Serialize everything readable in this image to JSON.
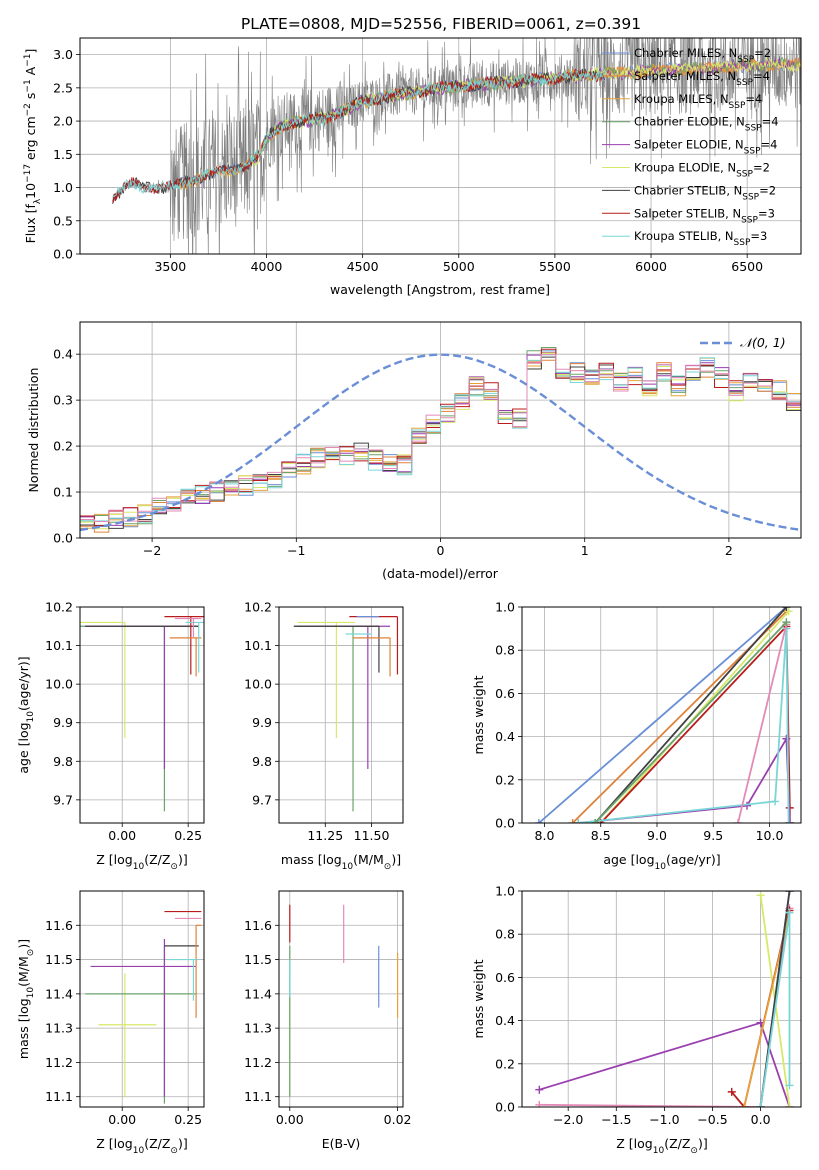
{
  "title": "PLATE=0808, MJD=52556, FIBERID=0061, z=0.391",
  "colors": {
    "Chabrier MILES": "#6a8fd6",
    "Salpeter MILES": "#e0813a",
    "Kroupa MILES": "#e6a33a",
    "Chabrier ELODIE": "#6aa46a",
    "Salpeter ELODIE": "#9a3fb0",
    "Kroupa ELODIE": "#d8e86a",
    "Chabrier STELIB": "#404040",
    "Salpeter STELIB": "#b81c1c",
    "Kroupa STELIB": "#7ad6d6",
    "extra_pink": "#e48ab8",
    "data": "#808080",
    "gauss": "#6a8fd6",
    "grid": "#b0b0b0"
  },
  "chart_data": [
    {
      "type": "line",
      "title": "PLATE=0808, MJD=52556, FIBERID=0061, z=0.391",
      "xlabel": "wavelength [Angstrom, rest frame]",
      "ylabel": "Flux [f",
      "ylabel_sub": "λ",
      "ylabel_rest": "10",
      "ylabel_exp1": "−17",
      "ylabel_unit": " erg cm",
      "ylabel_exp2": "−2",
      "ylabel_unit2": " s",
      "ylabel_exp3": "−1",
      "ylabel_unit3": " A",
      "ylabel_exp4": "−1",
      "ylabel_end": "]",
      "xlim": [
        3030,
        6780
      ],
      "ylim": [
        0,
        3.25
      ],
      "xticks": [
        3500,
        4000,
        4500,
        5000,
        5500,
        6000,
        6500
      ],
      "yticks": [
        0.0,
        0.5,
        1.0,
        1.5,
        2.0,
        2.5,
        3.0
      ],
      "legend": "upper-right",
      "legend_entries": [
        {
          "name": "Chabrier MILES, N",
          "sub": "SSP",
          "n": "=2"
        },
        {
          "name": "Salpeter MILES, N",
          "sub": "SSP",
          "n": "=4"
        },
        {
          "name": "Kroupa MILES, N",
          "sub": "SSP",
          "n": "=4"
        },
        {
          "name": "Chabrier ELODIE, N",
          "sub": "SSP",
          "n": "=4"
        },
        {
          "name": "Salpeter ELODIE, N",
          "sub": "SSP",
          "n": "=4"
        },
        {
          "name": "Kroupa ELODIE, N",
          "sub": "SSP",
          "n": "=2"
        },
        {
          "name": "Chabrier STELIB, N",
          "sub": "SSP",
          "n": "=2"
        },
        {
          "name": "Salpeter STELIB, N",
          "sub": "SSP",
          "n": "=3"
        },
        {
          "name": "Kroupa STELIB, N",
          "sub": "SSP",
          "n": "=3"
        }
      ],
      "continuum": [
        [
          3200,
          0.85
        ],
        [
          3260,
          1.0
        ],
        [
          3300,
          1.05
        ],
        [
          3380,
          1.02
        ],
        [
          3500,
          1.0
        ],
        [
          3600,
          1.1
        ],
        [
          3700,
          1.2
        ],
        [
          3800,
          1.25
        ],
        [
          3900,
          1.35
        ],
        [
          3970,
          1.5
        ],
        [
          4000,
          1.75
        ],
        [
          4100,
          1.95
        ],
        [
          4200,
          2.0
        ],
        [
          4300,
          2.05
        ],
        [
          4400,
          2.15
        ],
        [
          4500,
          2.3
        ],
        [
          4700,
          2.4
        ],
        [
          4900,
          2.5
        ],
        [
          5100,
          2.55
        ],
        [
          5300,
          2.6
        ],
        [
          5500,
          2.65
        ],
        [
          5700,
          2.7
        ],
        [
          6000,
          2.75
        ],
        [
          6300,
          2.8
        ],
        [
          6600,
          2.85
        ]
      ]
    },
    {
      "type": "step-histogram",
      "xlabel": "(data-model)/error",
      "ylabel": "Normed distribution",
      "xlim": [
        -2.5,
        2.5
      ],
      "ylim": [
        0,
        0.47
      ],
      "xticks": [
        -2,
        -1,
        0,
        1,
        2
      ],
      "yticks": [
        0.0,
        0.1,
        0.2,
        0.3,
        0.4
      ],
      "bin_edges_start": -2.5,
      "bin_width": 0.1,
      "base_values": [
        0.03,
        0.035,
        0.04,
        0.045,
        0.05,
        0.07,
        0.08,
        0.085,
        0.095,
        0.1,
        0.11,
        0.115,
        0.12,
        0.13,
        0.145,
        0.16,
        0.175,
        0.185,
        0.18,
        0.19,
        0.17,
        0.165,
        0.16,
        0.22,
        0.25,
        0.27,
        0.3,
        0.33,
        0.32,
        0.27,
        0.26,
        0.39,
        0.4,
        0.37,
        0.36,
        0.35,
        0.36,
        0.34,
        0.35,
        0.33,
        0.36,
        0.33,
        0.36,
        0.37,
        0.35,
        0.32,
        0.35,
        0.33,
        0.32,
        0.3,
        0.28,
        0.26,
        0.24,
        0.22,
        0.2,
        0.19,
        0.17,
        0.15,
        0.14,
        0.12,
        0.11,
        0.1,
        0.1,
        0.09,
        0.08,
        0.075,
        0.07,
        0.065,
        0.05,
        0.045,
        0.04,
        0.035,
        0.03,
        0.03,
        0.03,
        0.03
      ],
      "gauss_label": "𝒩(0, 1)",
      "legend": "upper-right"
    },
    {
      "type": "scatter-errorbars",
      "xlabel": "Z [log",
      "xlabel_sub": "10",
      "xlabel_rest": "(Z/Z",
      "xlabel_sun": "⊙",
      "xlabel_end": ")]",
      "ylabel": "age  [log",
      "ylabel_sub": "10",
      "ylabel_rest": "(age/yr)]",
      "xlim": [
        -0.16,
        0.31
      ],
      "ylim": [
        9.64,
        10.2
      ],
      "xticks": [
        0.0,
        0.25
      ],
      "xticklabels": [
        "0.00",
        "0.25"
      ],
      "yticks": [
        9.7,
        9.8,
        9.9,
        10.0,
        10.1,
        10.2
      ],
      "points": [
        {
          "m": "Kroupa ELODIE",
          "x": 0.01,
          "y": 10.16,
          "xerr": [
            0.29,
            0.0
          ],
          "yerr": [
            0.3,
            0.0
          ]
        },
        {
          "m": "Chabrier ELODIE",
          "x": 0.16,
          "y": 10.15,
          "xerr": [
            0.32,
            0.13
          ],
          "yerr": [
            0.48,
            0.0
          ]
        },
        {
          "m": "Salpeter ELODIE",
          "x": 0.16,
          "y": 10.15,
          "xerr": [
            0.3,
            0.12
          ],
          "yerr": [
            0.37,
            0.0
          ]
        },
        {
          "m": "Chabrier STELIB",
          "x": 0.16,
          "y": 10.15,
          "xerr": [
            0.3,
            0.13
          ],
          "yerr": [
            0.0,
            0.0
          ]
        },
        {
          "m": "Salpeter STELIB",
          "x": 0.26,
          "y": 10.175,
          "xerr": [
            0.1,
            0.05
          ],
          "yerr": [
            0.15,
            0.0
          ]
        },
        {
          "m": "Salpeter MILES",
          "x": 0.28,
          "y": 10.12,
          "xerr": [
            0.1,
            0.02
          ],
          "yerr": [
            0.1,
            0.0
          ]
        },
        {
          "m": "Kroupa STELIB",
          "x": 0.29,
          "y": 10.16,
          "xerr": [
            0.05,
            0.02
          ],
          "yerr": [
            0.13,
            0.0
          ]
        },
        {
          "m": "extra_pink",
          "x": 0.27,
          "y": 10.17,
          "xerr": [
            0.07,
            0.03
          ],
          "yerr": [
            0.05,
            0.0
          ]
        }
      ]
    },
    {
      "type": "scatter-errorbars",
      "xlabel": "mass [log",
      "xlabel_sub": "10",
      "xlabel_rest": "(M/M",
      "xlabel_sun": "⊙",
      "xlabel_end": ")]",
      "ylim": [
        9.64,
        10.2
      ],
      "xlim": [
        11.0,
        11.67
      ],
      "xticks": [
        11.25,
        11.5
      ],
      "xticklabels": [
        "11.25",
        "11.50"
      ],
      "yticks": [
        9.7,
        9.8,
        9.9,
        10.0,
        10.1,
        10.2
      ],
      "points": [
        {
          "m": "Kroupa ELODIE",
          "x": 11.31,
          "y": 10.16,
          "xerr": [
            0.21,
            0.1
          ],
          "yerr": [
            0.3,
            0.0
          ]
        },
        {
          "m": "Chabrier ELODIE",
          "x": 11.4,
          "y": 10.15,
          "xerr": [
            0.32,
            0.14
          ],
          "yerr": [
            0.48,
            0.0
          ]
        },
        {
          "m": "Salpeter ELODIE",
          "x": 11.48,
          "y": 10.15,
          "xerr": [
            0.38,
            0.12
          ],
          "yerr": [
            0.37,
            0.0
          ]
        },
        {
          "m": "Chabrier STELIB",
          "x": 11.54,
          "y": 10.15,
          "xerr": [
            0.46,
            0.0
          ],
          "yerr": [
            0.12,
            0.0
          ]
        },
        {
          "m": "Salpeter STELIB",
          "x": 11.64,
          "y": 10.175,
          "xerr": [
            0.26,
            0.0
          ],
          "yerr": [
            0.15,
            0.0
          ]
        },
        {
          "m": "Salpeter MILES",
          "x": 11.6,
          "y": 10.12,
          "xerr": [
            0.2,
            0.0
          ],
          "yerr": [
            0.1,
            0.0
          ]
        },
        {
          "m": "Kroupa STELIB",
          "x": 11.5,
          "y": 10.13,
          "xerr": [
            0.14,
            0.0
          ],
          "yerr": [
            0.0,
            0.0
          ]
        },
        {
          "m": "Chabrier MILES",
          "x": 11.54,
          "y": 10.175,
          "xerr": [
            0.12,
            0.0
          ],
          "yerr": [
            0.0,
            0.0
          ]
        }
      ]
    },
    {
      "type": "line",
      "xlabel": "age  [log",
      "xlabel_sub": "10",
      "xlabel_rest": "(age/yr)]",
      "ylabel": "mass weight",
      "xlim": [
        7.8,
        10.28
      ],
      "ylim": [
        0,
        1.0
      ],
      "xticks": [
        8.0,
        8.5,
        9.0,
        9.5,
        10.0
      ],
      "xticklabels": [
        "8.0",
        "8.5",
        "9.0",
        "9.5",
        "10.0"
      ],
      "yticks": [
        0.0,
        0.2,
        0.4,
        0.6,
        0.8,
        1.0
      ],
      "series": [
        {
          "m": "Chabrier MILES",
          "x": [
            7.95,
            10.15
          ],
          "y": [
            0.0,
            1.0
          ]
        },
        {
          "m": "Salpeter MILES",
          "x": [
            8.25,
            10.15
          ],
          "y": [
            0.0,
            0.98
          ]
        },
        {
          "m": "Kroupa ELODIE",
          "x": [
            8.5,
            10.17
          ],
          "y": [
            0.0,
            0.98
          ]
        },
        {
          "m": "Chabrier STELIB",
          "x": [
            8.45,
            10.15
          ],
          "y": [
            0.0,
            1.0
          ]
        },
        {
          "m": "Salpeter STELIB",
          "x": [
            8.5,
            10.15,
            10.18,
            10.18
          ],
          "y": [
            0.0,
            0.91,
            0.07,
            0.0
          ]
        },
        {
          "m": "Salpeter ELODIE",
          "x": [
            8.3,
            9.8,
            10.15,
            10.18
          ],
          "y": [
            0.0,
            0.08,
            0.39,
            0.0
          ]
        },
        {
          "m": "Kroupa STELIB",
          "x": [
            8.3,
            10.05,
            10.15,
            10.17
          ],
          "y": [
            0.0,
            0.1,
            0.9,
            0.0
          ]
        },
        {
          "m": "extra_pink",
          "x": [
            9.72,
            10.15
          ],
          "y": [
            0.0,
            0.92
          ]
        },
        {
          "m": "Chabrier ELODIE",
          "x": [
            8.45,
            10.15
          ],
          "y": [
            0.0,
            0.93
          ]
        }
      ]
    },
    {
      "type": "scatter-errorbars",
      "xlabel": "Z [log",
      "xlabel_sub": "10",
      "xlabel_rest": "(Z/Z",
      "xlabel_sun": "⊙",
      "xlabel_end": ")]",
      "ylabel": "mass [log",
      "ylabel_sub": "10",
      "ylabel_rest": "(M/M",
      "ylabel_sun": "⊙",
      "ylabel_end": ")]",
      "xlim": [
        -0.16,
        0.31
      ],
      "ylim": [
        11.07,
        11.7
      ],
      "xticks": [
        0.0,
        0.25
      ],
      "xticklabels": [
        "0.00",
        "0.25"
      ],
      "yticks": [
        11.1,
        11.2,
        11.3,
        11.4,
        11.5,
        11.6
      ],
      "points": [
        {
          "m": "Kroupa ELODIE",
          "x": 0.01,
          "y": 11.31,
          "xerr": [
            0.1,
            0.12
          ],
          "yerr": [
            0.21,
            0.15
          ]
        },
        {
          "m": "Chabrier ELODIE",
          "x": 0.16,
          "y": 11.4,
          "xerr": [
            0.3,
            0.12
          ],
          "yerr": [
            0.32,
            0.14
          ]
        },
        {
          "m": "Salpeter ELODIE",
          "x": 0.16,
          "y": 11.48,
          "xerr": [
            0.28,
            0.12
          ],
          "yerr": [
            0.38,
            0.08
          ]
        },
        {
          "m": "Chabrier STELIB",
          "x": 0.16,
          "y": 11.54,
          "xerr": [
            0.0,
            0.13
          ],
          "yerr": [
            0.0,
            0.0
          ]
        },
        {
          "m": "Salpeter STELIB",
          "x": 0.26,
          "y": 11.64,
          "xerr": [
            0.1,
            0.04
          ],
          "yerr": [
            0.0,
            0.0
          ]
        },
        {
          "m": "Salpeter MILES",
          "x": 0.28,
          "y": 11.6,
          "xerr": [
            0.0,
            0.02
          ],
          "yerr": [
            0.27,
            0.0
          ]
        },
        {
          "m": "Kroupa STELIB",
          "x": 0.27,
          "y": 11.5,
          "xerr": [
            0.1,
            0.02
          ],
          "yerr": [
            0.12,
            0.0
          ]
        },
        {
          "m": "extra_pink",
          "x": 0.27,
          "y": 11.62,
          "xerr": [
            0.07,
            0.03
          ],
          "yerr": [
            0.0,
            0.0
          ]
        }
      ]
    },
    {
      "type": "scatter-errorbars",
      "xlabel": "E(B-V)",
      "xlim": [
        -0.002,
        0.021
      ],
      "ylim": [
        11.07,
        11.7
      ],
      "xticks": [
        0.0,
        0.02
      ],
      "xticklabels": [
        "0.00",
        "0.02"
      ],
      "yticks": [
        11.1,
        11.2,
        11.3,
        11.4,
        11.5,
        11.6
      ],
      "points": [
        {
          "m": "Kroupa ELODIE",
          "x": 0.0,
          "y": 11.31,
          "xerr": [
            0,
            0
          ],
          "yerr": [
            0.21,
            0.15
          ]
        },
        {
          "m": "Chabrier ELODIE",
          "x": 0.0,
          "y": 11.4,
          "xerr": [
            0,
            0
          ],
          "yerr": [
            0.3,
            0.14
          ]
        },
        {
          "m": "Salpeter STELIB",
          "x": 0.0,
          "y": 11.6,
          "xerr": [
            0,
            0
          ],
          "yerr": [
            0.05,
            0.06
          ]
        },
        {
          "m": "Kroupa STELIB",
          "x": 0.0,
          "y": 11.45,
          "xerr": [
            0,
            0
          ],
          "yerr": [
            0.06,
            0.05
          ]
        },
        {
          "m": "extra_pink",
          "x": 0.01,
          "y": 11.58,
          "xerr": [
            0,
            0
          ],
          "yerr": [
            0.09,
            0.08
          ]
        },
        {
          "m": "Chabrier MILES",
          "x": 0.0165,
          "y": 11.45,
          "xerr": [
            0,
            0
          ],
          "yerr": [
            0.09,
            0.09
          ]
        },
        {
          "m": "Kroupa MILES",
          "x": 0.02,
          "y": 11.42,
          "xerr": [
            0,
            0
          ],
          "yerr": [
            0.09,
            0.1
          ]
        }
      ]
    },
    {
      "type": "line",
      "xlabel": "Z [log",
      "xlabel_sub": "10",
      "xlabel_rest": "(Z/Z",
      "xlabel_sun": "⊙",
      "xlabel_end": ")]",
      "ylabel": "mass weight",
      "xlim": [
        -2.48,
        0.42
      ],
      "ylim": [
        0,
        1.0
      ],
      "xticks": [
        -2.0,
        -1.5,
        -1.0,
        -0.5,
        0.0
      ],
      "xticklabels": [
        "−2.0",
        "−1.5",
        "−1.0",
        "−0.5",
        "0.0"
      ],
      "yticks": [
        0.0,
        0.2,
        0.4,
        0.6,
        0.8,
        1.0
      ],
      "series": [
        {
          "m": "Salpeter ELODIE",
          "x": [
            -2.3,
            0.0,
            0.3
          ],
          "y": [
            0.08,
            0.39,
            0.0
          ]
        },
        {
          "m": "extra_pink",
          "x": [
            -2.3,
            0.0,
            0.3
          ],
          "y": [
            0.01,
            0.0,
            0.92
          ]
        },
        {
          "m": "Chabrier MILES",
          "x": [
            0.0,
            0.3
          ],
          "y": [
            0.0,
            1.0
          ]
        },
        {
          "m": "Kroupa ELODIE",
          "x": [
            0.0,
            0.3
          ],
          "y": [
            0.98,
            0.0
          ]
        },
        {
          "m": "Salpeter STELIB",
          "x": [
            -0.3,
            -0.17,
            0.3
          ],
          "y": [
            0.07,
            0.0,
            0.91
          ]
        },
        {
          "m": "Kroupa MILES",
          "x": [
            -0.17,
            0.3
          ],
          "y": [
            0.0,
            0.9
          ]
        },
        {
          "m": "Chabrier STELIB",
          "x": [
            0.0,
            0.3
          ],
          "y": [
            0.0,
            1.0
          ]
        },
        {
          "m": "Kroupa STELIB",
          "x": [
            0.0,
            0.3,
            0.3
          ],
          "y": [
            0.0,
            0.9,
            0.1
          ]
        }
      ]
    }
  ]
}
